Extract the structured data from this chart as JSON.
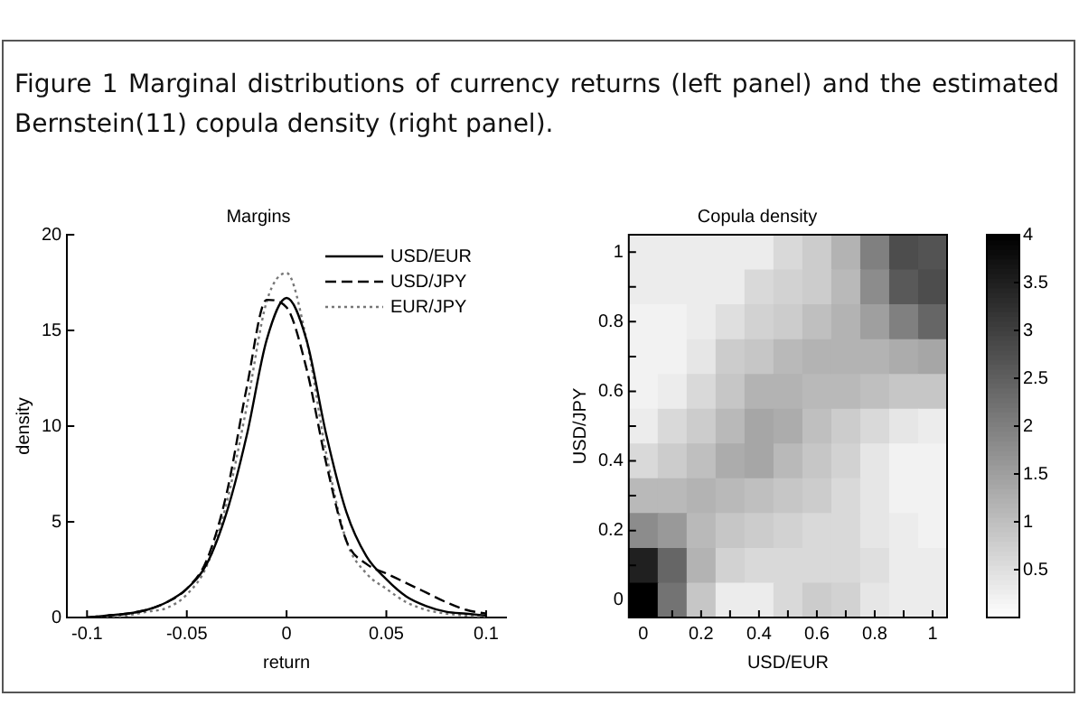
{
  "chart_data": [
    {
      "type": "line",
      "title": "Margins",
      "xlabel": "return",
      "ylabel": "density",
      "annotations": [
        "Figure 1 Marginal distributions of currency returns (left panel) and the estimated Bernstein(11) copula density (right panel)."
      ],
      "x": [
        -0.1,
        -0.09,
        -0.08,
        -0.07,
        -0.06,
        -0.05,
        -0.04,
        -0.03,
        -0.02,
        -0.01,
        0,
        0.01,
        0.02,
        0.03,
        0.04,
        0.05,
        0.06,
        0.07,
        0.08,
        0.09,
        0.1
      ],
      "series": [
        {
          "name": "USD/EUR",
          "color": "#000000",
          "line_style": "solid",
          "values": [
            0,
            0.1,
            0.2,
            0.4,
            0.8,
            1.5,
            2.8,
            5.5,
            9.5,
            14.5,
            16.7,
            14.5,
            9.5,
            5.5,
            3.2,
            2.0,
            1.1,
            0.6,
            0.3,
            0.2,
            0.1
          ]
        },
        {
          "name": "USD/JPY",
          "color": "#000000",
          "line_style": "dashed",
          "values": [
            0,
            0.1,
            0.2,
            0.4,
            0.8,
            1.5,
            3.0,
            6.5,
            12,
            16.6,
            16.2,
            13,
            8,
            4,
            2.8,
            2.3,
            1.8,
            1.3,
            0.8,
            0.4,
            0.2
          ]
        },
        {
          "name": "EUR/JPY",
          "color": "#777777",
          "line_style": "dotted",
          "values": [
            0,
            0,
            0.1,
            0.3,
            0.5,
            1.2,
            2.7,
            6,
            11,
            16.5,
            18,
            14.5,
            8.5,
            4,
            2.3,
            1.5,
            0.8,
            0.4,
            0.2,
            0.1,
            0
          ]
        }
      ],
      "xlim": [
        -0.11,
        0.11
      ],
      "xticks": [
        -0.1,
        -0.05,
        0,
        0.05,
        0.1
      ],
      "ylim": [
        0,
        20
      ],
      "yticks": [
        0,
        5,
        10,
        15,
        20
      ],
      "legend": "top right",
      "grid": false
    },
    {
      "type": "heatmap",
      "title": "Copula density",
      "xlabel": "USD/EUR",
      "ylabel": "USD/JPY",
      "categories": [
        "0",
        null,
        "0.2",
        null,
        "0.4",
        null,
        "0.6",
        null,
        "0.8",
        null,
        "1"
      ],
      "y_categories": [
        "1",
        null,
        "0.8",
        null,
        "0.6",
        null,
        "0.4",
        null,
        "0.2",
        null,
        "0"
      ],
      "cells": [
        [
          0.3,
          0.3,
          0.3,
          0.3,
          0.3,
          0.6,
          0.8,
          1.2,
          2.0,
          2.8,
          2.7
        ],
        [
          0.3,
          0.3,
          0.3,
          0.3,
          0.6,
          0.7,
          0.8,
          1.1,
          1.8,
          2.6,
          2.8
        ],
        [
          0.2,
          0.2,
          0.3,
          0.5,
          0.7,
          0.8,
          1.0,
          1.2,
          1.5,
          2.0,
          2.4
        ],
        [
          0.2,
          0.2,
          0.4,
          0.8,
          0.9,
          1.1,
          1.2,
          1.2,
          1.2,
          1.3,
          1.4
        ],
        [
          0.2,
          0.3,
          0.6,
          0.9,
          1.2,
          1.2,
          1.1,
          1.1,
          1.0,
          0.9,
          0.9
        ],
        [
          0.3,
          0.6,
          0.8,
          1.1,
          1.4,
          1.3,
          1.0,
          0.8,
          0.6,
          0.4,
          0.3
        ],
        [
          0.6,
          0.8,
          1.0,
          1.3,
          1.4,
          1.1,
          0.9,
          0.7,
          0.4,
          0.2,
          0.2
        ],
        [
          1.1,
          1.1,
          1.2,
          1.1,
          1.0,
          0.9,
          0.8,
          0.6,
          0.4,
          0.2,
          0.2
        ],
        [
          1.8,
          1.6,
          1.1,
          0.9,
          0.8,
          0.7,
          0.6,
          0.6,
          0.4,
          0.3,
          0.2
        ],
        [
          3.5,
          2.4,
          1.2,
          0.7,
          0.6,
          0.6,
          0.6,
          0.6,
          0.5,
          0.3,
          0.3
        ],
        [
          4.0,
          2.2,
          0.9,
          0.3,
          0.3,
          0.6,
          0.8,
          0.7,
          0.4,
          0.3,
          0.3
        ]
      ],
      "clim": [
        0,
        4
      ],
      "cticks": [
        0.5,
        1,
        1.5,
        2,
        2.5,
        3,
        3.5,
        4
      ],
      "grid": false
    }
  ]
}
